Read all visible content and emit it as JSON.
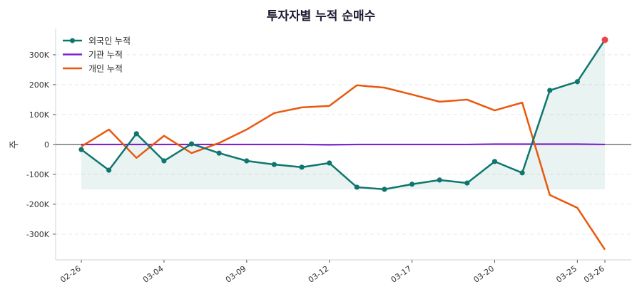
{
  "chart_data": {
    "type": "line",
    "title": "투자자별 누적 순매수",
    "xlabel": "",
    "ylabel": "주",
    "x": [
      "02-26",
      "02-27",
      "03-03",
      "03-04",
      "03-05",
      "03-06",
      "03-09",
      "03-10",
      "03-11",
      "03-12",
      "03-13",
      "03-16",
      "03-17",
      "03-18",
      "03-19",
      "03-20",
      "03-23",
      "03-24",
      "03-25",
      "03-26"
    ],
    "x_tick_labels": [
      "02-26",
      "03-04",
      "03-09",
      "03-12",
      "03-17",
      "03-20",
      "03-25",
      "03-26"
    ],
    "y_ticks": [
      -300000,
      -200000,
      -100000,
      0,
      100000,
      200000,
      300000
    ],
    "y_tick_labels": [
      "-300K",
      "-200K",
      "-100K",
      "0",
      "100K",
      "200K",
      "300K"
    ],
    "ylim": [
      -386000,
      388000
    ],
    "grid": "horizontal dashed",
    "legend_position": "top-left",
    "series": [
      {
        "name": "외국인 누적",
        "color": "#0f766e",
        "marker": true,
        "fill": true,
        "values": [
          -17000,
          -86000,
          36000,
          -55000,
          2000,
          -29000,
          -55000,
          -67000,
          -76000,
          -62000,
          -143000,
          -150000,
          -133000,
          -119000,
          -129000,
          -57000,
          -95000,
          181000,
          210000,
          350000
        ]
      },
      {
        "name": "기관 누적",
        "color": "#7e22ce",
        "marker": false,
        "values": [
          0,
          0,
          0,
          0,
          0,
          0,
          0,
          0,
          0,
          -1000,
          0,
          0,
          0,
          0,
          0,
          1000,
          1000,
          1000,
          1000,
          0
        ]
      },
      {
        "name": "개인 누적",
        "color": "#ea580c",
        "marker": false,
        "values": [
          -7000,
          50000,
          -45000,
          29000,
          -29000,
          5000,
          50000,
          105000,
          124000,
          129000,
          198000,
          190000,
          167000,
          143000,
          150000,
          114000,
          140000,
          -169000,
          -212000,
          -352000
        ]
      }
    ],
    "last_point_highlight_color": "#ef4444"
  }
}
